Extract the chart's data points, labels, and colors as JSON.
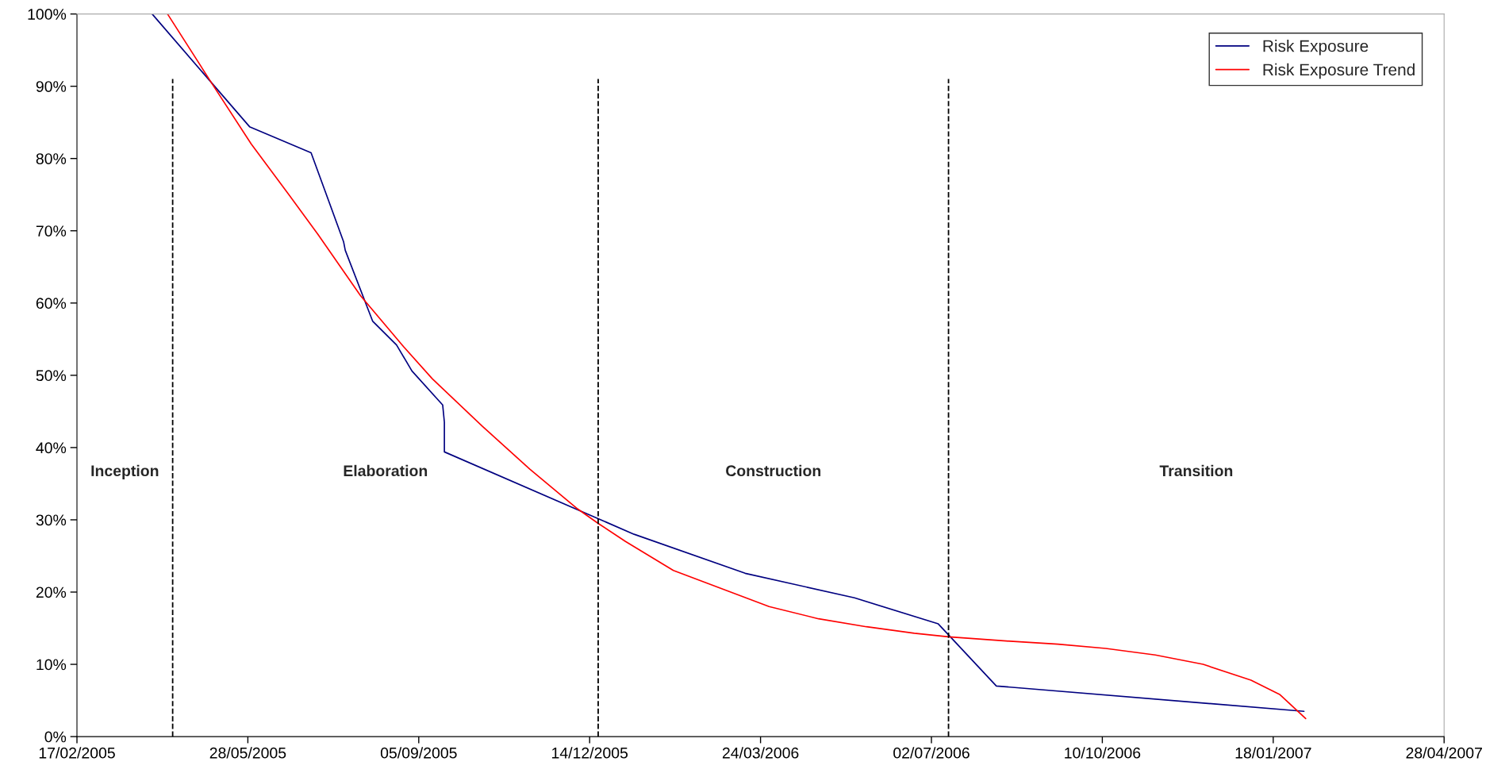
{
  "chart_data": {
    "type": "line",
    "xlim": [
      "2005-02-17",
      "2007-04-28"
    ],
    "xticks": [
      {
        "value": "2005-02-17",
        "label": "17/02/2005"
      },
      {
        "value": "2005-05-28",
        "label": "28/05/2005"
      },
      {
        "value": "2005-09-05",
        "label": "05/09/2005"
      },
      {
        "value": "2005-12-14",
        "label": "14/12/2005"
      },
      {
        "value": "2006-03-24",
        "label": "24/03/2006"
      },
      {
        "value": "2006-07-02",
        "label": "02/07/2006"
      },
      {
        "value": "2006-10-10",
        "label": "10/10/2006"
      },
      {
        "value": "2007-01-18",
        "label": "18/01/2007"
      },
      {
        "value": "2007-04-28",
        "label": "28/04/2007"
      }
    ],
    "ylim": [
      0,
      100
    ],
    "yticks": [
      {
        "value": 0,
        "label": "0%"
      },
      {
        "value": 10,
        "label": "10%"
      },
      {
        "value": 20,
        "label": "20%"
      },
      {
        "value": 30,
        "label": "30%"
      },
      {
        "value": 40,
        "label": "40%"
      },
      {
        "value": 50,
        "label": "50%"
      },
      {
        "value": 60,
        "label": "60%"
      },
      {
        "value": 70,
        "label": "70%"
      },
      {
        "value": 80,
        "label": "80%"
      },
      {
        "value": 90,
        "label": "90%"
      },
      {
        "value": 100,
        "label": "100%"
      }
    ],
    "series": [
      {
        "name": "Risk Exposure",
        "color": "#000080",
        "x": [
          "2005-04-02",
          "2005-05-29",
          "2005-07-04",
          "2005-07-23",
          "2005-07-24",
          "2005-08-09",
          "2005-08-23",
          "2005-09-01",
          "2005-09-19",
          "2005-09-20",
          "2005-09-20",
          "2006-01-09",
          "2006-03-15",
          "2006-05-18",
          "2006-07-06",
          "2006-08-09",
          "2007-02-05"
        ],
        "values": [
          100,
          84.4,
          80.8,
          68.5,
          67.3,
          57.5,
          54.2,
          50.6,
          45.9,
          43.5,
          39.4,
          28.0,
          22.6,
          19.2,
          15.6,
          7.0,
          3.5
        ]
      },
      {
        "name": "Risk Exposure Trend",
        "color": "#ff0000",
        "x": [
          "2005-04-11",
          "2005-05-08",
          "2005-05-30",
          "2005-06-21",
          "2005-07-08",
          "2005-08-02",
          "2005-08-27",
          "2005-09-13",
          "2005-10-12",
          "2005-11-09",
          "2005-12-07",
          "2005-12-19",
          "2006-01-04",
          "2006-02-01",
          "2006-03-01",
          "2006-03-29",
          "2006-04-27",
          "2006-05-25",
          "2006-06-22",
          "2006-07-12",
          "2006-08-17",
          "2006-09-14",
          "2006-10-12",
          "2006-11-10",
          "2006-12-08",
          "2007-01-05",
          "2007-01-22",
          "2007-02-06"
        ],
        "values": [
          100,
          90,
          82,
          75,
          69.5,
          61,
          54,
          49.5,
          43,
          37,
          31.5,
          29.5,
          27,
          23,
          20.5,
          18,
          16.3,
          15.2,
          14.3,
          13.8,
          13.2,
          12.8,
          12.2,
          11.3,
          10.0,
          7.8,
          5.8,
          2.5
        ]
      }
    ],
    "ref_lines": [
      {
        "axis": "x",
        "value": "2005-04-14",
        "color": "#000000",
        "line_style": "dashed"
      },
      {
        "axis": "x",
        "value": "2005-12-19",
        "color": "#000000",
        "line_style": "dashed"
      },
      {
        "axis": "x",
        "value": "2006-07-12",
        "color": "#000000",
        "line_style": "dashed"
      }
    ],
    "annotations": [
      "Inception",
      "Elaboration",
      "Construction",
      "Transition"
    ],
    "legend": "top right",
    "grid": false,
    "line_style": "solid",
    "marker": "none"
  }
}
